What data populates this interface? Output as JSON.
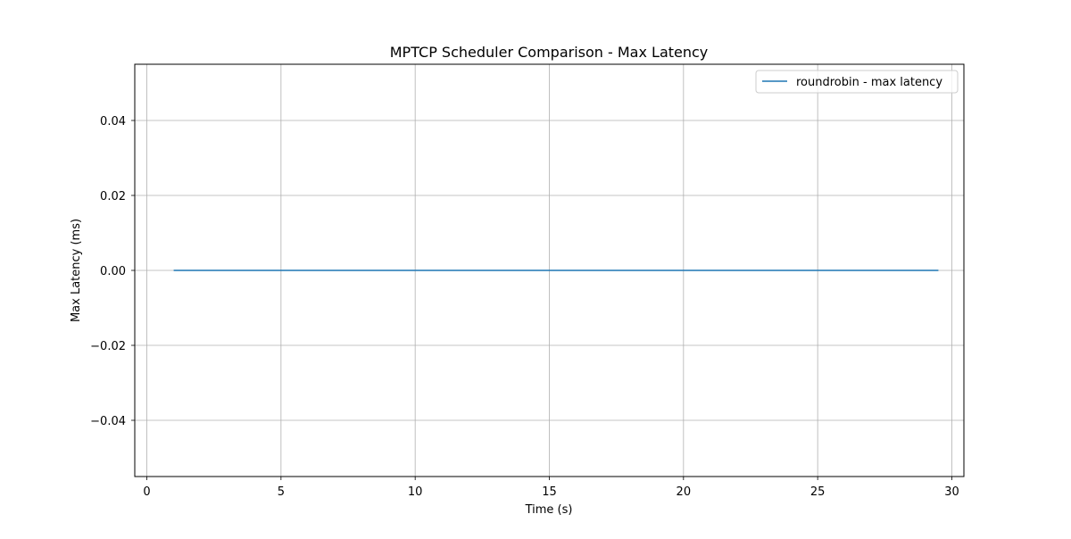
{
  "chart_data": {
    "type": "line",
    "title": "MPTCP Scheduler Comparison - Max Latency",
    "xlabel": "Time (s)",
    "ylabel": "Max Latency (ms)",
    "xlim": [
      -0.45,
      30.45
    ],
    "ylim": [
      -0.055,
      0.055
    ],
    "xticks": [
      0,
      5,
      10,
      15,
      20,
      25,
      30
    ],
    "yticks": [
      -0.04,
      -0.02,
      0.0,
      0.02,
      0.04
    ],
    "ytick_labels": [
      "−0.04",
      "−0.02",
      "0.00",
      "0.02",
      "0.04"
    ],
    "grid": true,
    "legend_position": "upper right",
    "series": [
      {
        "name": "roundrobin - max latency",
        "color": "#1f77b4",
        "x": [
          1,
          29.5
        ],
        "y": [
          0,
          0
        ]
      }
    ]
  }
}
